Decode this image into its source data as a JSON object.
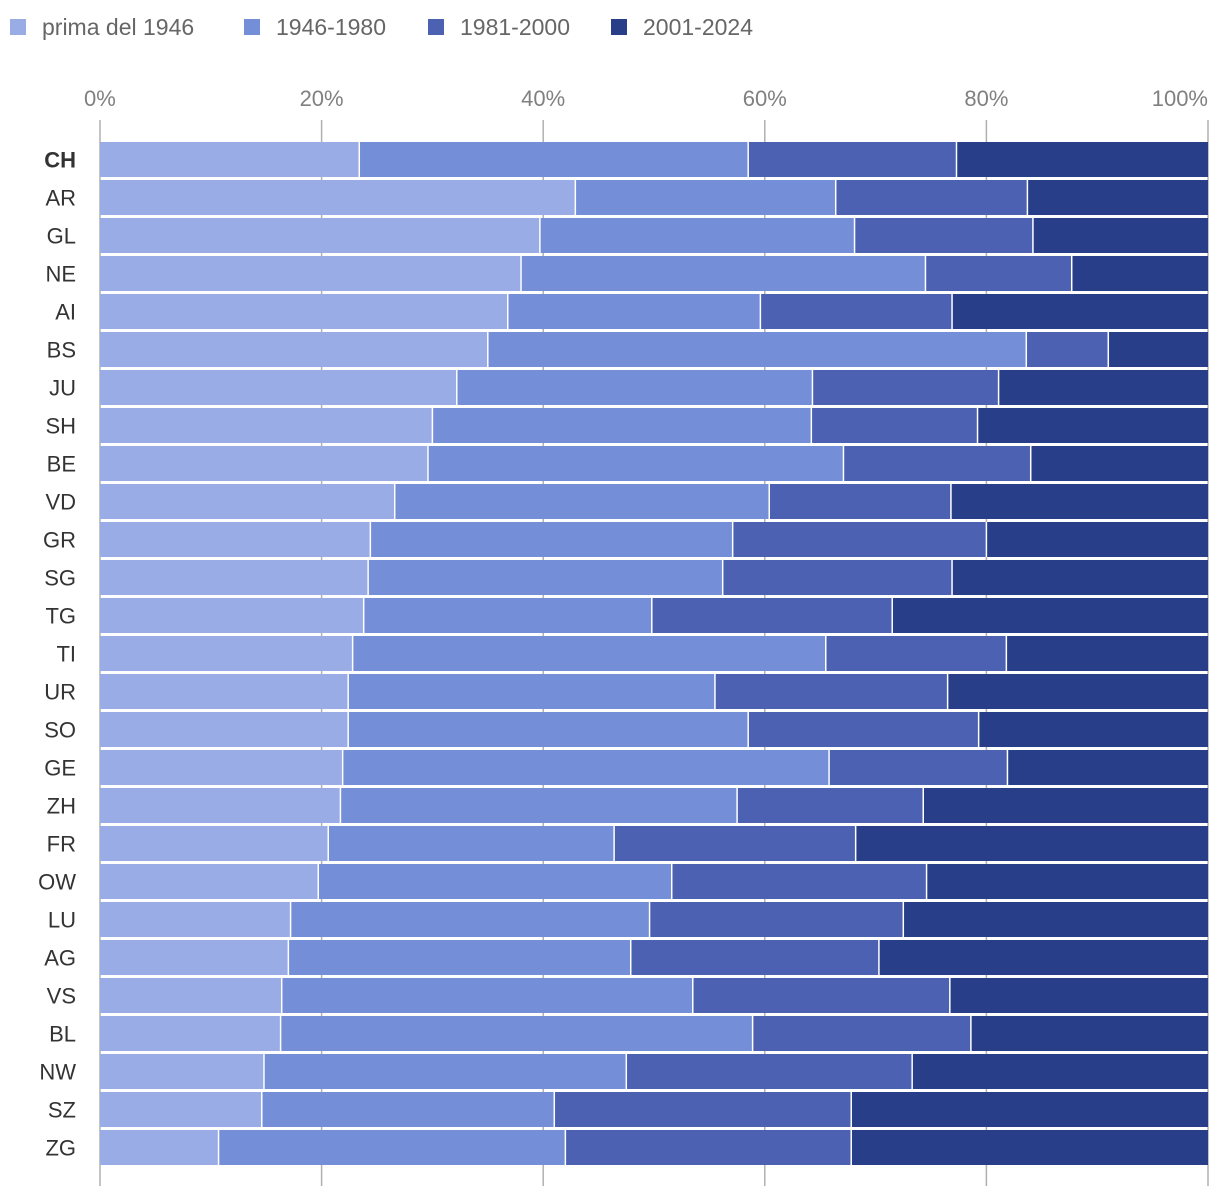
{
  "chart_data": {
    "type": "bar",
    "orientation": "horizontal",
    "stacked": true,
    "normalized": true,
    "highlight_category": "CH",
    "xlim": [
      0,
      100
    ],
    "ticks": [
      0,
      20,
      40,
      60,
      80,
      100
    ],
    "tick_labels": [
      "0%",
      "20%",
      "40%",
      "60%",
      "80%",
      "100%"
    ],
    "legend_position": "top-left",
    "categories": [
      "CH",
      "AR",
      "GL",
      "NE",
      "AI",
      "BS",
      "JU",
      "SH",
      "BE",
      "VD",
      "GR",
      "SG",
      "TG",
      "TI",
      "UR",
      "SO",
      "GE",
      "ZH",
      "FR",
      "OW",
      "LU",
      "AG",
      "VS",
      "BL",
      "NW",
      "SZ",
      "ZG"
    ],
    "series": [
      {
        "name": "prima del 1946",
        "color": "#9aace6",
        "values": [
          23.4,
          42.9,
          39.7,
          38.0,
          36.8,
          35.0,
          32.2,
          30.0,
          29.6,
          26.6,
          24.4,
          24.2,
          23.8,
          22.8,
          22.4,
          22.4,
          21.9,
          21.7,
          20.6,
          19.7,
          17.2,
          17.0,
          16.4,
          16.3,
          14.8,
          14.6,
          10.7
        ]
      },
      {
        "name": "1946-1980",
        "color": "#748ed8",
        "values": [
          35.1,
          23.5,
          28.4,
          36.5,
          22.8,
          48.6,
          32.1,
          34.2,
          37.5,
          33.8,
          32.7,
          32.0,
          26.0,
          42.7,
          33.1,
          36.1,
          43.9,
          35.8,
          25.8,
          31.9,
          32.4,
          30.9,
          37.1,
          42.6,
          32.7,
          26.4,
          31.3
        ]
      },
      {
        "name": "1981-2000",
        "color": "#4c61b2",
        "values": [
          18.8,
          17.3,
          16.1,
          13.2,
          17.3,
          7.4,
          16.8,
          15.0,
          16.9,
          16.4,
          22.9,
          20.7,
          21.7,
          16.3,
          21.0,
          20.8,
          16.1,
          16.8,
          21.8,
          23.0,
          22.9,
          22.4,
          23.2,
          19.7,
          25.8,
          26.8,
          25.8
        ]
      },
      {
        "name": "2001-2024",
        "color": "#283e88",
        "values": [
          22.7,
          16.3,
          15.8,
          12.3,
          23.1,
          9.0,
          18.9,
          20.8,
          16.0,
          23.2,
          20.0,
          23.1,
          28.5,
          18.2,
          23.5,
          20.7,
          18.1,
          25.7,
          31.8,
          25.4,
          27.5,
          29.7,
          23.3,
          21.4,
          26.7,
          32.2,
          32.2
        ]
      }
    ]
  }
}
